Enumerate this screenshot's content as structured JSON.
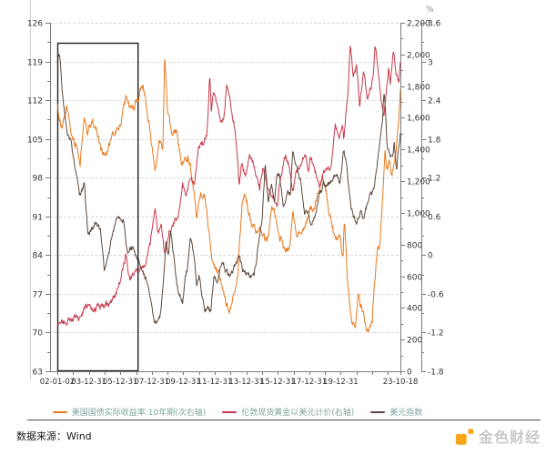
{
  "page": {
    "background": "#ffffff"
  },
  "chart": {
    "plot": {
      "grid_color": "#d8d8d8",
      "axis_color": "#7a7a7a",
      "tick_label_color": "#333333"
    },
    "left_axis": {
      "min": 63,
      "max": 126,
      "step": 7,
      "minor_step": 3.5
    },
    "right_axis_gold": {
      "min": 0,
      "max": 2200,
      "step": 200,
      "minor_step": 100
    },
    "right_axis_pct": {
      "min": -1.8,
      "max": 3.6,
      "step": 0.6,
      "minor_step": 0.3,
      "unit": "%"
    },
    "x_axis": {
      "labels": [
        {
          "text": "02-01-02",
          "year": 2002.0
        },
        {
          "text": "03-12-31",
          "year": 2004.0
        },
        {
          "text": "05-12-31",
          "year": 2006.0
        },
        {
          "text": "07-12-31",
          "year": 2008.0
        },
        {
          "text": "09-12-31",
          "year": 2010.0
        },
        {
          "text": "11-12-31",
          "year": 2012.0
        },
        {
          "text": "13-12-31",
          "year": 2014.0
        },
        {
          "text": "15-12-31",
          "year": 2016.0
        },
        {
          "text": "17-12-31",
          "year": 2018.0
        },
        {
          "text": "19-12-31",
          "year": 2020.0
        },
        {
          "text": "23-10-18",
          "year": 2023.79
        }
      ],
      "minor_tick_year_start": 2002,
      "minor_tick_year_end": 2023
    }
  },
  "chart_data": {
    "type": "line",
    "x_unit": "decimal_year",
    "x_range": [
      2002.0,
      2023.79
    ],
    "annotation_box": {
      "year_start": 2002.0,
      "year_end": 2007.1,
      "stroke": "#1f1f1f"
    },
    "series": [
      {
        "name": "美国国债实际收益率:10年期(次右轴)",
        "color": "#E8791E",
        "axis": "pct",
        "points": [
          [
            2002.0,
            2.35
          ],
          [
            2002.3,
            1.9
          ],
          [
            2002.6,
            2.3
          ],
          [
            2002.9,
            1.85
          ],
          [
            2003.2,
            1.7
          ],
          [
            2003.45,
            1.4
          ],
          [
            2003.7,
            2.15
          ],
          [
            2003.9,
            1.85
          ],
          [
            2004.2,
            2.1
          ],
          [
            2004.5,
            1.95
          ],
          [
            2004.8,
            1.65
          ],
          [
            2005.1,
            1.6
          ],
          [
            2005.4,
            1.75
          ],
          [
            2005.7,
            1.9
          ],
          [
            2006.0,
            2.0
          ],
          [
            2006.4,
            2.45
          ],
          [
            2006.7,
            2.25
          ],
          [
            2007.0,
            2.35
          ],
          [
            2007.45,
            2.65
          ],
          [
            2007.7,
            2.2
          ],
          [
            2007.9,
            1.85
          ],
          [
            2008.2,
            1.35
          ],
          [
            2008.5,
            1.85
          ],
          [
            2008.7,
            1.6
          ],
          [
            2008.82,
            3.15
          ],
          [
            2009.0,
            2.2
          ],
          [
            2009.3,
            1.8
          ],
          [
            2009.6,
            1.85
          ],
          [
            2009.9,
            1.5
          ],
          [
            2010.3,
            1.55
          ],
          [
            2010.6,
            1.2
          ],
          [
            2010.85,
            0.65
          ],
          [
            2011.1,
            1.05
          ],
          [
            2011.4,
            0.85
          ],
          [
            2011.75,
            0.1
          ],
          [
            2012.0,
            -0.1
          ],
          [
            2012.4,
            -0.35
          ],
          [
            2012.7,
            -0.7
          ],
          [
            2012.95,
            -0.85
          ],
          [
            2013.2,
            -0.65
          ],
          [
            2013.45,
            -0.3
          ],
          [
            2013.75,
            0.8
          ],
          [
            2013.95,
            0.85
          ],
          [
            2014.3,
            0.55
          ],
          [
            2014.6,
            0.3
          ],
          [
            2015.0,
            0.3
          ],
          [
            2015.3,
            0.2
          ],
          [
            2015.6,
            0.65
          ],
          [
            2015.9,
            0.6
          ],
          [
            2016.1,
            0.35
          ],
          [
            2016.5,
            0.05
          ],
          [
            2016.75,
            0.05
          ],
          [
            2016.95,
            0.7
          ],
          [
            2017.2,
            0.4
          ],
          [
            2017.5,
            0.5
          ],
          [
            2017.8,
            0.45
          ],
          [
            2018.1,
            0.7
          ],
          [
            2018.5,
            0.85
          ],
          [
            2018.85,
            1.15
          ],
          [
            2019.1,
            0.9
          ],
          [
            2019.4,
            0.5
          ],
          [
            2019.7,
            0.15
          ],
          [
            2019.95,
            0.15
          ],
          [
            2020.15,
            -0.15
          ],
          [
            2020.23,
            0.55
          ],
          [
            2020.45,
            -0.45
          ],
          [
            2020.7,
            -1.05
          ],
          [
            2020.95,
            -1.0
          ],
          [
            2021.1,
            -0.65
          ],
          [
            2021.35,
            -0.85
          ],
          [
            2021.6,
            -1.15
          ],
          [
            2021.85,
            -1.0
          ],
          [
            2022.0,
            -0.95
          ],
          [
            2022.15,
            -0.45
          ],
          [
            2022.35,
            0.15
          ],
          [
            2022.5,
            0.25
          ],
          [
            2022.65,
            0.85
          ],
          [
            2022.82,
            1.6
          ],
          [
            2022.95,
            1.35
          ],
          [
            2023.1,
            1.45
          ],
          [
            2023.25,
            1.2
          ],
          [
            2023.45,
            1.55
          ],
          [
            2023.6,
            1.8
          ],
          [
            2023.7,
            2.1
          ],
          [
            2023.79,
            2.45
          ]
        ]
      },
      {
        "name": "伦敦现货黄金以美元计价(右轴)",
        "color": "#C8384A",
        "axis": "gold",
        "points": [
          [
            2002.0,
            281
          ],
          [
            2002.4,
            310
          ],
          [
            2002.8,
            320
          ],
          [
            2003.1,
            350
          ],
          [
            2003.4,
            330
          ],
          [
            2003.9,
            400
          ],
          [
            2004.3,
            390
          ],
          [
            2004.8,
            440
          ],
          [
            2005.2,
            428
          ],
          [
            2005.7,
            460
          ],
          [
            2006.0,
            545
          ],
          [
            2006.37,
            715
          ],
          [
            2006.6,
            580
          ],
          [
            2006.9,
            630
          ],
          [
            2007.2,
            660
          ],
          [
            2007.6,
            680
          ],
          [
            2007.9,
            800
          ],
          [
            2008.2,
            1005
          ],
          [
            2008.4,
            880
          ],
          [
            2008.6,
            930
          ],
          [
            2008.83,
            725
          ],
          [
            2009.1,
            900
          ],
          [
            2009.4,
            930
          ],
          [
            2009.7,
            990
          ],
          [
            2009.95,
            1180
          ],
          [
            2010.2,
            1110
          ],
          [
            2010.45,
            1220
          ],
          [
            2010.7,
            1190
          ],
          [
            2010.95,
            1400
          ],
          [
            2011.2,
            1420
          ],
          [
            2011.5,
            1510
          ],
          [
            2011.68,
            1895
          ],
          [
            2011.78,
            1640
          ],
          [
            2011.9,
            1750
          ],
          [
            2012.1,
            1700
          ],
          [
            2012.4,
            1560
          ],
          [
            2012.55,
            1580
          ],
          [
            2012.75,
            1780
          ],
          [
            2013.0,
            1660
          ],
          [
            2013.25,
            1560
          ],
          [
            2013.45,
            1360
          ],
          [
            2013.55,
            1200
          ],
          [
            2013.7,
            1320
          ],
          [
            2013.95,
            1200
          ],
          [
            2014.2,
            1380
          ],
          [
            2014.5,
            1290
          ],
          [
            2014.85,
            1140
          ],
          [
            2015.05,
            1290
          ],
          [
            2015.3,
            1180
          ],
          [
            2015.6,
            1090
          ],
          [
            2015.95,
            1055
          ],
          [
            2016.2,
            1240
          ],
          [
            2016.5,
            1365
          ],
          [
            2016.75,
            1310
          ],
          [
            2016.95,
            1130
          ],
          [
            2017.2,
            1250
          ],
          [
            2017.65,
            1350
          ],
          [
            2017.95,
            1280
          ],
          [
            2018.05,
            1360
          ],
          [
            2018.3,
            1310
          ],
          [
            2018.65,
            1175
          ],
          [
            2018.95,
            1280
          ],
          [
            2019.2,
            1290
          ],
          [
            2019.4,
            1280
          ],
          [
            2019.65,
            1550
          ],
          [
            2019.9,
            1480
          ],
          [
            2020.1,
            1580
          ],
          [
            2020.2,
            1470
          ],
          [
            2020.45,
            1750
          ],
          [
            2020.6,
            2063
          ],
          [
            2020.8,
            1860
          ],
          [
            2020.95,
            1890
          ],
          [
            2021.0,
            1950
          ],
          [
            2021.2,
            1680
          ],
          [
            2021.45,
            1900
          ],
          [
            2021.7,
            1725
          ],
          [
            2021.9,
            1800
          ],
          [
            2022.05,
            1850
          ],
          [
            2022.18,
            2040
          ],
          [
            2022.45,
            1840
          ],
          [
            2022.6,
            1710
          ],
          [
            2022.75,
            1630
          ],
          [
            2022.9,
            1770
          ],
          [
            2023.05,
            1930
          ],
          [
            2023.15,
            1830
          ],
          [
            2023.35,
            2040
          ],
          [
            2023.5,
            1910
          ],
          [
            2023.7,
            1815
          ],
          [
            2023.79,
            1960
          ]
        ]
      },
      {
        "name": "美元指数",
        "color": "#5E4A3C",
        "axis": "left",
        "points": [
          [
            2002.0,
            120.2
          ],
          [
            2002.15,
            119.5
          ],
          [
            2002.35,
            112
          ],
          [
            2002.6,
            106.5
          ],
          [
            2002.9,
            104
          ],
          [
            2003.15,
            100
          ],
          [
            2003.4,
            95
          ],
          [
            2003.7,
            97
          ],
          [
            2003.95,
            87.5
          ],
          [
            2004.2,
            88.5
          ],
          [
            2004.5,
            90
          ],
          [
            2004.75,
            88
          ],
          [
            2004.99,
            81
          ],
          [
            2005.3,
            84.5
          ],
          [
            2005.6,
            89
          ],
          [
            2005.9,
            91
          ],
          [
            2006.2,
            89.5
          ],
          [
            2006.45,
            84.5
          ],
          [
            2006.8,
            85.5
          ],
          [
            2007.1,
            83.5
          ],
          [
            2007.4,
            81.5
          ],
          [
            2007.75,
            78
          ],
          [
            2007.95,
            76
          ],
          [
            2008.15,
            72.5
          ],
          [
            2008.3,
            71.5
          ],
          [
            2008.55,
            73
          ],
          [
            2008.75,
            80
          ],
          [
            2008.9,
            86.5
          ],
          [
            2009.05,
            84
          ],
          [
            2009.2,
            89
          ],
          [
            2009.5,
            80.5
          ],
          [
            2009.75,
            76.5
          ],
          [
            2009.95,
            75
          ],
          [
            2010.1,
            80
          ],
          [
            2010.25,
            81.5
          ],
          [
            2010.45,
            87.5
          ],
          [
            2010.7,
            83
          ],
          [
            2010.85,
            79
          ],
          [
            2011.0,
            81
          ],
          [
            2011.15,
            77.5
          ],
          [
            2011.35,
            73.5
          ],
          [
            2011.55,
            74.5
          ],
          [
            2011.75,
            74
          ],
          [
            2011.95,
            80
          ],
          [
            2012.2,
            79
          ],
          [
            2012.45,
            83
          ],
          [
            2012.7,
            81.5
          ],
          [
            2012.95,
            79.8
          ],
          [
            2013.2,
            81.5
          ],
          [
            2013.55,
            84.2
          ],
          [
            2013.75,
            81
          ],
          [
            2013.95,
            80.5
          ],
          [
            2014.2,
            80
          ],
          [
            2014.5,
            80.2
          ],
          [
            2014.75,
            85.5
          ],
          [
            2015.0,
            90
          ],
          [
            2015.2,
            100
          ],
          [
            2015.4,
            94
          ],
          [
            2015.6,
            97
          ],
          [
            2015.8,
            93.5
          ],
          [
            2015.95,
            98.5
          ],
          [
            2016.1,
            99
          ],
          [
            2016.35,
            93
          ],
          [
            2016.6,
            96
          ],
          [
            2016.8,
            95.5
          ],
          [
            2016.95,
            103.2
          ],
          [
            2017.2,
            100
          ],
          [
            2017.45,
            97
          ],
          [
            2017.7,
            91.3
          ],
          [
            2017.95,
            92.5
          ],
          [
            2018.1,
            89
          ],
          [
            2018.4,
            92
          ],
          [
            2018.7,
            95
          ],
          [
            2018.95,
            97
          ],
          [
            2019.2,
            96.5
          ],
          [
            2019.45,
            97.5
          ],
          [
            2019.75,
            99
          ],
          [
            2019.95,
            97.2
          ],
          [
            2020.2,
            103
          ],
          [
            2020.4,
            99.5
          ],
          [
            2020.65,
            93
          ],
          [
            2020.95,
            90
          ],
          [
            2021.0,
            89.4
          ],
          [
            2021.25,
            92.5
          ],
          [
            2021.4,
            90
          ],
          [
            2021.65,
            92.5
          ],
          [
            2021.9,
            96
          ],
          [
            2022.1,
            96
          ],
          [
            2022.3,
            99
          ],
          [
            2022.5,
            104.5
          ],
          [
            2022.65,
            109
          ],
          [
            2022.75,
            114.1
          ],
          [
            2022.85,
            110
          ],
          [
            2022.95,
            104
          ],
          [
            2023.1,
            102
          ],
          [
            2023.3,
            101.5
          ],
          [
            2023.4,
            103.5
          ],
          [
            2023.55,
            99.8
          ],
          [
            2023.65,
            103
          ],
          [
            2023.79,
            106.2
          ]
        ]
      }
    ],
    "legend_position": "bottom",
    "grid": "horizontal-dashed"
  },
  "legend": {
    "text_color": "#7FA3A0"
  },
  "footer": {
    "source": "数据来源：Wind",
    "brand": "金色财经",
    "brand_icon_color": "#F9A51A",
    "brand_text_color": "#c9c9c9",
    "divider_color": "#4d4d4d"
  }
}
